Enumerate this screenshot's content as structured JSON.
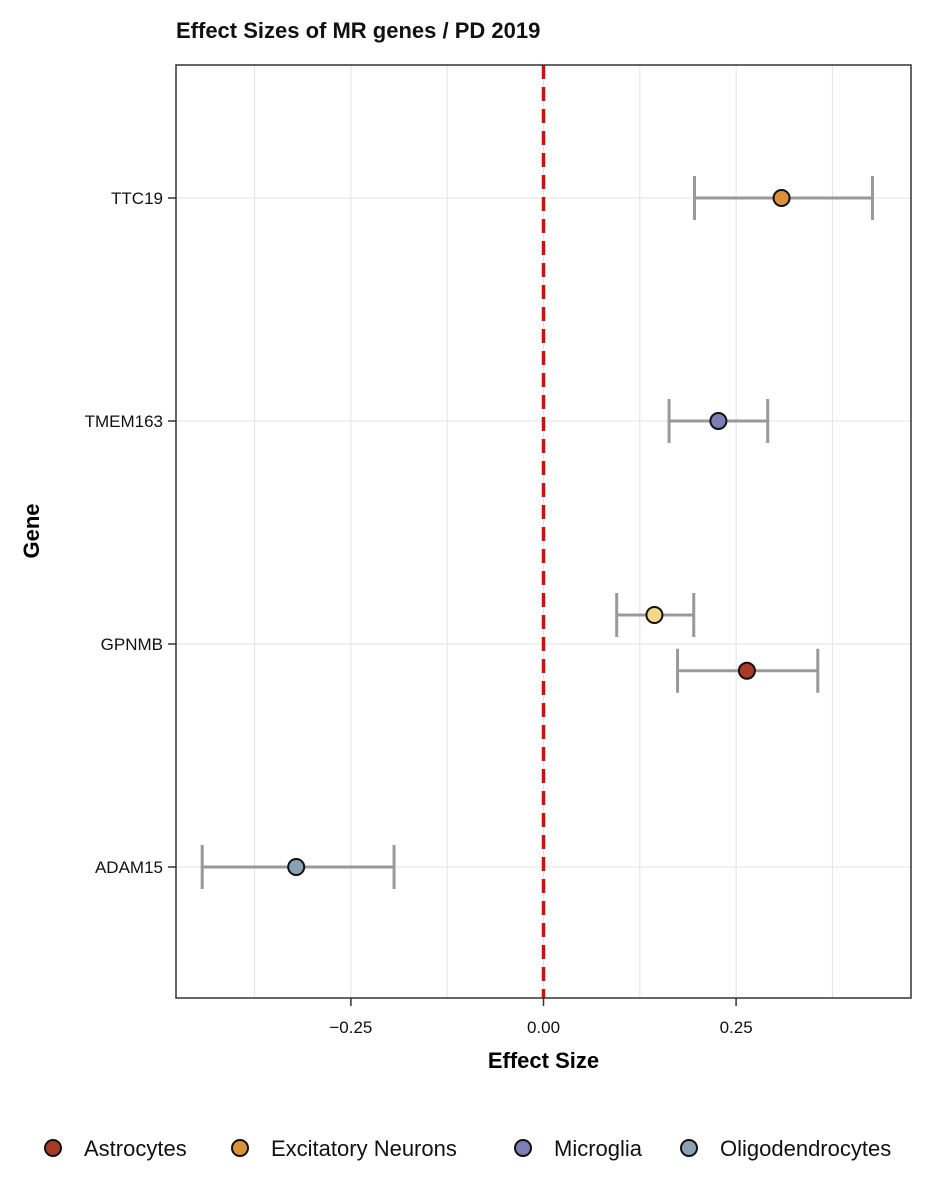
{
  "chart_data": {
    "type": "scatter",
    "subtype": "forest-plot",
    "title": "Effect Sizes of MR genes /  PD 2019",
    "xlabel": "Effect Size",
    "ylabel": "Gene",
    "xlim": [
      -0.477,
      0.477
    ],
    "x_ticks": [
      -0.25,
      0.0,
      0.25
    ],
    "x_tick_labels": [
      "−0.25",
      "0.00",
      "0.25"
    ],
    "x_minor_gridlines": [
      -0.375,
      -0.125,
      0.125,
      0.375
    ],
    "genes": [
      "TTC19",
      "TMEM163",
      "GPNMB",
      "ADAM15"
    ],
    "reference_line": {
      "x": 0,
      "color": "#cc1111",
      "style": "dashed"
    },
    "points": [
      {
        "gene": "TTC19",
        "cell_type": "Excitatory Neurons",
        "estimate": 0.309,
        "ci_low": 0.196,
        "ci_high": 0.427,
        "offset": 0
      },
      {
        "gene": "TMEM163",
        "cell_type": "Microglia",
        "estimate": 0.227,
        "ci_low": 0.163,
        "ci_high": 0.291,
        "offset": 0
      },
      {
        "gene": "GPNMB",
        "cell_type": "",
        "estimate": 0.144,
        "ci_low": 0.095,
        "ci_high": 0.195,
        "offset": -0.13
      },
      {
        "gene": "GPNMB",
        "cell_type": "Astrocytes",
        "estimate": 0.264,
        "ci_low": 0.174,
        "ci_high": 0.356,
        "offset": 0.12
      },
      {
        "gene": "ADAM15",
        "cell_type": "Oligodendrocytes",
        "estimate": -0.321,
        "ci_low": -0.443,
        "ci_high": -0.194,
        "offset": 0
      }
    ],
    "extra_point_color": "#f5d78a",
    "legend": {
      "position": "bottom",
      "entries": [
        {
          "label": "Astrocytes",
          "color": "#a83a28"
        },
        {
          "label": "Excitatory Neurons",
          "color": "#d9913a"
        },
        {
          "label": "Microglia",
          "color": "#7b7fb5"
        },
        {
          "label": "Oligodendrocytes",
          "color": "#8aa2b5"
        }
      ]
    },
    "errorbar_color": "#999999",
    "grid": true
  }
}
